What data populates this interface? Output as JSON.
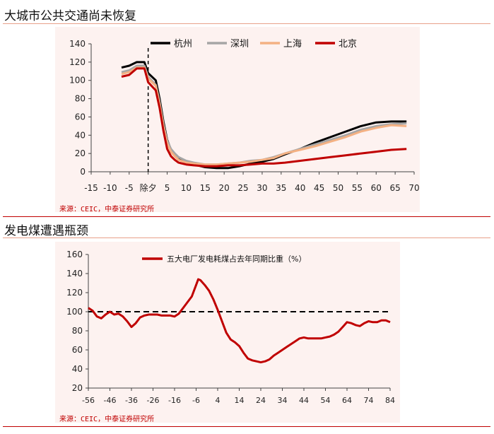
{
  "section1": {
    "title": "大城市公共交通尚未恢复",
    "source": "来源：CEIC，中泰证券研究所"
  },
  "section2": {
    "title": "发电煤遭遇瓶颈",
    "source": "来源：CEIC，中泰证券研究所"
  },
  "colors": {
    "hangzhou": "#000000",
    "shenzhen": "#a6a6a6",
    "shanghai": "#f4b183",
    "beijing": "#c00000",
    "coal": "#c00000",
    "source_text": "#c00000"
  },
  "chart_data": [
    {
      "type": "line",
      "title": "大城市公共交通尚未恢复",
      "xlim": [
        -15,
        70
      ],
      "ylim": [
        0,
        140
      ],
      "x_ticks": [
        "-15",
        "-10",
        "-5",
        "除夕",
        "5",
        "10",
        "15",
        "20",
        "25",
        "30",
        "35",
        "40",
        "45",
        "50",
        "55",
        "60",
        "65",
        "70"
      ],
      "x_tick_values": [
        -15,
        -10,
        -5,
        0,
        5,
        10,
        15,
        20,
        25,
        30,
        35,
        40,
        45,
        50,
        55,
        60,
        65,
        70
      ],
      "y_ticks": [
        0,
        20,
        40,
        60,
        80,
        100,
        120,
        140
      ],
      "vline_x": 0,
      "legend_position": "top",
      "series": [
        {
          "name": "杭州",
          "color": "#000000",
          "x": [
            -7,
            -5,
            -3,
            -1,
            0,
            2,
            3,
            4,
            5,
            6,
            7,
            8,
            10,
            12,
            15,
            18,
            21,
            24,
            27,
            30,
            33,
            36,
            40,
            44,
            48,
            52,
            56,
            60,
            64,
            68
          ],
          "y": [
            114,
            116,
            120,
            120,
            108,
            100,
            80,
            55,
            35,
            24,
            18,
            14,
            10,
            8,
            5,
            4,
            4,
            6,
            9,
            11,
            14,
            19,
            25,
            32,
            38,
            44,
            50,
            54,
            55,
            55
          ]
        },
        {
          "name": "深圳",
          "color": "#a6a6a6",
          "x": [
            -7,
            -5,
            -3,
            -1,
            0,
            2,
            3,
            4,
            5,
            6,
            7,
            8,
            10,
            12,
            15,
            18,
            21,
            24,
            27,
            30,
            33,
            36,
            40,
            44,
            48,
            52,
            56,
            60,
            64,
            68
          ],
          "y": [
            109,
            111,
            116,
            116,
            104,
            95,
            76,
            52,
            34,
            25,
            20,
            16,
            12,
            10,
            8,
            8,
            9,
            10,
            12,
            13,
            16,
            20,
            25,
            30,
            35,
            40,
            46,
            50,
            52,
            53
          ]
        },
        {
          "name": "上海",
          "color": "#f4b183",
          "x": [
            -7,
            -5,
            -3,
            -1,
            0,
            2,
            3,
            4,
            5,
            6,
            7,
            8,
            10,
            12,
            15,
            18,
            21,
            24,
            27,
            30,
            33,
            36,
            40,
            44,
            48,
            52,
            56,
            60,
            64,
            68
          ],
          "y": [
            107,
            109,
            114,
            114,
            102,
            94,
            74,
            50,
            31,
            22,
            17,
            13,
            10,
            9,
            8,
            8,
            9,
            10,
            11,
            13,
            15,
            20,
            24,
            28,
            33,
            38,
            44,
            48,
            51,
            50
          ]
        },
        {
          "name": "北京",
          "color": "#c00000",
          "x": [
            -7,
            -5,
            -3,
            -1,
            0,
            2,
            3,
            4,
            5,
            6,
            7,
            8,
            10,
            12,
            15,
            18,
            21,
            24,
            27,
            30,
            33,
            36,
            40,
            44,
            48,
            52,
            56,
            60,
            64,
            68
          ],
          "y": [
            104,
            106,
            113,
            113,
            98,
            89,
            70,
            45,
            25,
            17,
            13,
            10,
            8,
            7,
            6,
            6,
            7,
            7,
            8,
            9,
            9,
            10,
            12,
            14,
            16,
            18,
            20,
            22,
            24,
            25
          ]
        }
      ]
    },
    {
      "type": "line",
      "title": "发电煤遭遇瓶颈",
      "xlim": [
        -56,
        84
      ],
      "ylim": [
        20,
        160
      ],
      "x_ticks": [
        -56,
        -46,
        -36,
        -26,
        -16,
        -6,
        4,
        14,
        24,
        34,
        44,
        54,
        64,
        74,
        84
      ],
      "y_ticks": [
        20,
        40,
        60,
        80,
        100,
        120,
        140,
        160
      ],
      "hline_y": 100,
      "legend_position": "top-center",
      "series": [
        {
          "name": "五大电厂发电耗煤占去年同期比重（%）",
          "color": "#c00000",
          "x": [
            -56,
            -54,
            -52,
            -50,
            -48,
            -46,
            -44,
            -42,
            -40,
            -38,
            -36,
            -34,
            -32,
            -30,
            -28,
            -26,
            -24,
            -22,
            -20,
            -18,
            -16,
            -14,
            -12,
            -10,
            -8,
            -6,
            -5,
            -4,
            -2,
            0,
            2,
            4,
            6,
            8,
            10,
            12,
            14,
            16,
            18,
            20,
            22,
            24,
            26,
            28,
            30,
            32,
            34,
            36,
            38,
            40,
            42,
            44,
            46,
            48,
            50,
            52,
            54,
            56,
            58,
            60,
            62,
            64,
            66,
            68,
            70,
            72,
            74,
            76,
            78,
            80,
            82,
            84
          ],
          "y": [
            104,
            101,
            95,
            93,
            97,
            100,
            97,
            98,
            95,
            90,
            84,
            88,
            94,
            96,
            97,
            97,
            97,
            96,
            96,
            96,
            95,
            98,
            104,
            110,
            116,
            128,
            134,
            133,
            128,
            122,
            113,
            102,
            90,
            78,
            71,
            68,
            64,
            57,
            51,
            49,
            48,
            47,
            48,
            50,
            54,
            57,
            60,
            63,
            66,
            69,
            72,
            73,
            72,
            72,
            72,
            72,
            73,
            74,
            76,
            79,
            84,
            89,
            88,
            86,
            85,
            88,
            90,
            89,
            89,
            91,
            91,
            89
          ]
        }
      ]
    }
  ]
}
